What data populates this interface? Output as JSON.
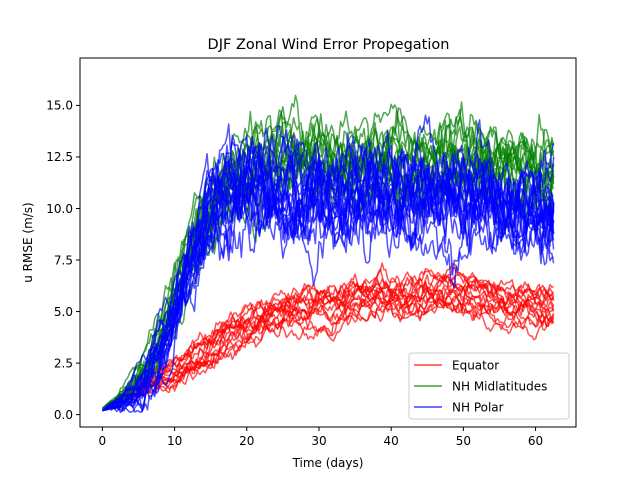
{
  "chart_data": {
    "type": "line",
    "title": "DJF Zonal Wind Error Propegation",
    "xlabel": "Time (days)",
    "ylabel": "u RMSE (m/s)",
    "xlim": [
      -3.1,
      65.6
    ],
    "ylim": [
      -0.6,
      17.3
    ],
    "xticks": [
      0,
      10,
      20,
      30,
      40,
      50,
      60
    ],
    "yticks": [
      0.0,
      2.5,
      5.0,
      7.5,
      10.0,
      12.5,
      15.0
    ],
    "xtick_labels": [
      "0",
      "10",
      "20",
      "30",
      "40",
      "50",
      "60"
    ],
    "ytick_labels": [
      "0.0",
      "2.5",
      "5.0",
      "7.5",
      "10.0",
      "12.5",
      "15.0"
    ],
    "grid": false,
    "legend_position": "lower-right",
    "series_groups": [
      {
        "name": "Equator",
        "color": "#ff0000",
        "members": 16,
        "x": [
          0,
          2,
          4,
          6,
          8,
          10,
          12,
          14,
          16,
          18,
          20,
          22,
          24,
          26,
          28,
          30,
          32,
          34,
          36,
          38,
          40,
          42,
          44,
          46,
          48,
          50,
          52,
          54,
          56,
          58,
          60,
          62.5
        ],
        "y": [
          0.2,
          0.6,
          1.0,
          1.4,
          1.7,
          2.0,
          2.4,
          2.9,
          3.4,
          3.9,
          4.3,
          4.6,
          4.9,
          5.0,
          5.1,
          5.0,
          5.2,
          5.5,
          5.7,
          5.8,
          5.7,
          5.5,
          5.6,
          5.9,
          6.0,
          5.9,
          5.7,
          5.5,
          5.4,
          5.3,
          5.2,
          5.1
        ]
      },
      {
        "name": "NH Midlatitudes",
        "color": "#008000",
        "members": 16,
        "x": [
          0,
          2,
          4,
          6,
          8,
          10,
          12,
          14,
          16,
          18,
          20,
          22,
          24,
          26,
          28,
          30,
          32,
          34,
          36,
          38,
          40,
          42,
          44,
          46,
          48,
          50,
          52,
          54,
          56,
          58,
          60,
          62.5
        ],
        "y": [
          0.3,
          0.7,
          1.3,
          2.3,
          3.6,
          5.5,
          7.6,
          9.4,
          10.5,
          11.1,
          11.6,
          12.0,
          12.3,
          12.4,
          12.2,
          12.1,
          12.0,
          11.9,
          11.8,
          11.9,
          12.0,
          11.8,
          11.8,
          12.0,
          12.2,
          12.0,
          12.1,
          11.8,
          11.7,
          11.6,
          11.4,
          11.3
        ]
      },
      {
        "name": "NH Polar",
        "color": "#0000ff",
        "members": 20,
        "x": [
          0,
          2,
          4,
          6,
          8,
          10,
          12,
          14,
          16,
          18,
          20,
          22,
          24,
          26,
          28,
          30,
          32,
          34,
          36,
          38,
          40,
          42,
          44,
          46,
          48,
          50,
          52,
          54,
          56,
          58,
          60,
          62.5
        ],
        "y": [
          0.2,
          0.5,
          0.9,
          1.6,
          3.0,
          5.1,
          7.4,
          9.3,
          10.6,
          11.0,
          11.1,
          10.9,
          10.7,
          10.6,
          10.5,
          10.4,
          10.5,
          10.6,
          10.7,
          10.6,
          10.5,
          10.4,
          10.5,
          10.7,
          10.9,
          10.6,
          10.4,
          10.2,
          10.0,
          9.8,
          9.7,
          9.5
        ]
      }
    ]
  }
}
